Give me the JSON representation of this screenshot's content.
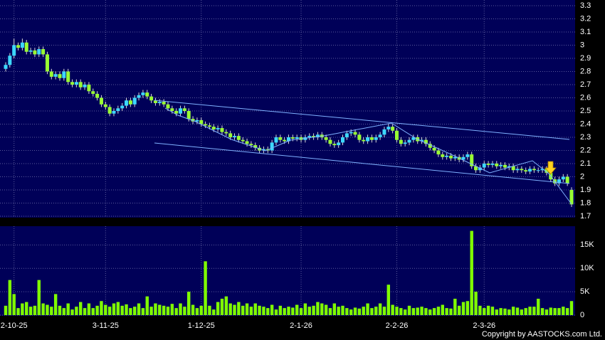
{
  "chart_data": {
    "type": "candlestick",
    "open": [
      2.82,
      2.85,
      2.92,
      3.0,
      2.98,
      3.02,
      2.95,
      2.96,
      2.93,
      2.97,
      2.93,
      2.8,
      2.76,
      2.78,
      2.75,
      2.8,
      2.72,
      2.7,
      2.72,
      2.68,
      2.7,
      2.65,
      2.63,
      2.6,
      2.55,
      2.53,
      2.48,
      2.5,
      2.52,
      2.54,
      2.58,
      2.55,
      2.6,
      2.62,
      2.64,
      2.61,
      2.58,
      2.56,
      2.57,
      2.55,
      2.52,
      2.5,
      2.48,
      2.52,
      2.5,
      2.44,
      2.42,
      2.43,
      2.4,
      2.39,
      2.38,
      2.36,
      2.37,
      2.34,
      2.33,
      2.3,
      2.31,
      2.28,
      2.27,
      2.25,
      2.24,
      2.22,
      2.2,
      2.21,
      2.2,
      2.26,
      2.3,
      2.28,
      2.27,
      2.3,
      2.29,
      2.3,
      2.28,
      2.3,
      2.31,
      2.3,
      2.32,
      2.3,
      2.28,
      2.25,
      2.24,
      2.26,
      2.3,
      2.33,
      2.34,
      2.32,
      2.28,
      2.27,
      2.3,
      2.28,
      2.3,
      2.32,
      2.36,
      2.38,
      2.35,
      2.28,
      2.25,
      2.26,
      2.28,
      2.3,
      2.27,
      2.28,
      2.25,
      2.22,
      2.2,
      2.17,
      2.15,
      2.16,
      2.14,
      2.15,
      2.13,
      2.15,
      2.17,
      2.08,
      2.05,
      2.07,
      2.1,
      2.09,
      2.1,
      2.08,
      2.09,
      2.07,
      2.08,
      2.05,
      2.06,
      2.05,
      2.04,
      2.06,
      2.05,
      2.05,
      2.06,
      2.03,
      1.98,
      1.95,
      1.98,
      2.0,
      1.9
    ],
    "high": [
      2.87,
      2.94,
      3.05,
      3.02,
      3.05,
      3.04,
      2.98,
      2.98,
      2.99,
      2.99,
      2.95,
      2.82,
      2.8,
      2.8,
      2.82,
      2.82,
      2.74,
      2.74,
      2.74,
      2.72,
      2.72,
      2.67,
      2.65,
      2.62,
      2.57,
      2.55,
      2.52,
      2.54,
      2.56,
      2.6,
      2.6,
      2.62,
      2.64,
      2.66,
      2.66,
      2.63,
      2.6,
      2.59,
      2.59,
      2.57,
      2.54,
      2.52,
      2.54,
      2.54,
      2.52,
      2.46,
      2.45,
      2.45,
      2.42,
      2.41,
      2.4,
      2.39,
      2.39,
      2.36,
      2.35,
      2.33,
      2.33,
      2.3,
      2.29,
      2.27,
      2.26,
      2.24,
      2.23,
      2.23,
      2.28,
      2.32,
      2.32,
      2.3,
      2.32,
      2.32,
      2.32,
      2.32,
      2.32,
      2.33,
      2.33,
      2.34,
      2.34,
      2.32,
      2.3,
      2.27,
      2.28,
      2.32,
      2.35,
      2.36,
      2.36,
      2.34,
      2.3,
      2.32,
      2.32,
      2.32,
      2.34,
      2.38,
      2.4,
      2.4,
      2.37,
      2.3,
      2.28,
      2.3,
      2.32,
      2.32,
      2.3,
      2.3,
      2.27,
      2.24,
      2.22,
      2.19,
      2.18,
      2.18,
      2.17,
      2.17,
      2.17,
      2.19,
      2.19,
      2.1,
      2.09,
      2.12,
      2.12,
      2.12,
      2.12,
      2.11,
      2.11,
      2.1,
      2.1,
      2.08,
      2.08,
      2.07,
      2.08,
      2.08,
      2.07,
      2.08,
      2.08,
      2.05,
      2.0,
      2.0,
      2.02,
      2.02,
      1.92
    ],
    "low": [
      2.8,
      2.83,
      2.9,
      2.96,
      2.96,
      2.93,
      2.93,
      2.91,
      2.91,
      2.91,
      2.78,
      2.74,
      2.74,
      2.73,
      2.73,
      2.7,
      2.68,
      2.68,
      2.66,
      2.66,
      2.63,
      2.61,
      2.58,
      2.53,
      2.51,
      2.46,
      2.46,
      2.48,
      2.5,
      2.52,
      2.53,
      2.53,
      2.58,
      2.6,
      2.59,
      2.56,
      2.54,
      2.54,
      2.53,
      2.5,
      2.48,
      2.46,
      2.46,
      2.48,
      2.42,
      2.4,
      2.4,
      2.38,
      2.37,
      2.36,
      2.34,
      2.34,
      2.32,
      2.31,
      2.28,
      2.28,
      2.26,
      2.25,
      2.23,
      2.22,
      2.2,
      2.18,
      2.18,
      2.18,
      2.18,
      2.24,
      2.26,
      2.25,
      2.25,
      2.27,
      2.27,
      2.26,
      2.26,
      2.28,
      2.28,
      2.28,
      2.28,
      2.26,
      2.23,
      2.22,
      2.22,
      2.24,
      2.28,
      2.31,
      2.3,
      2.26,
      2.25,
      2.25,
      2.26,
      2.26,
      2.28,
      2.3,
      2.34,
      2.33,
      2.26,
      2.23,
      2.23,
      2.24,
      2.26,
      2.25,
      2.25,
      2.23,
      2.2,
      2.18,
      2.15,
      2.13,
      2.13,
      2.12,
      2.12,
      2.11,
      2.11,
      2.13,
      2.06,
      2.03,
      2.03,
      2.05,
      2.07,
      2.07,
      2.06,
      2.06,
      2.05,
      2.05,
      2.03,
      2.03,
      2.03,
      2.02,
      2.02,
      2.03,
      2.03,
      2.03,
      2.01,
      1.96,
      1.93,
      1.93,
      1.96,
      1.93,
      1.77
    ],
    "close": [
      2.85,
      2.92,
      3.0,
      2.98,
      3.02,
      2.95,
      2.96,
      2.93,
      2.97,
      2.93,
      2.8,
      2.76,
      2.78,
      2.75,
      2.8,
      2.72,
      2.7,
      2.72,
      2.68,
      2.7,
      2.65,
      2.63,
      2.6,
      2.55,
      2.53,
      2.48,
      2.5,
      2.52,
      2.54,
      2.58,
      2.55,
      2.6,
      2.62,
      2.64,
      2.61,
      2.58,
      2.56,
      2.57,
      2.55,
      2.52,
      2.5,
      2.48,
      2.52,
      2.5,
      2.44,
      2.42,
      2.43,
      2.4,
      2.39,
      2.38,
      2.36,
      2.37,
      2.34,
      2.33,
      2.3,
      2.31,
      2.28,
      2.27,
      2.25,
      2.24,
      2.22,
      2.2,
      2.21,
      2.2,
      2.26,
      2.3,
      2.28,
      2.27,
      2.3,
      2.29,
      2.3,
      2.28,
      2.3,
      2.31,
      2.3,
      2.32,
      2.3,
      2.28,
      2.25,
      2.24,
      2.26,
      2.3,
      2.33,
      2.34,
      2.32,
      2.28,
      2.27,
      2.3,
      2.28,
      2.3,
      2.32,
      2.36,
      2.38,
      2.35,
      2.28,
      2.25,
      2.26,
      2.28,
      2.3,
      2.27,
      2.28,
      2.25,
      2.22,
      2.2,
      2.17,
      2.15,
      2.16,
      2.14,
      2.15,
      2.13,
      2.15,
      2.17,
      2.08,
      2.05,
      2.07,
      2.1,
      2.09,
      2.1,
      2.08,
      2.09,
      2.07,
      2.08,
      2.05,
      2.06,
      2.05,
      2.04,
      2.06,
      2.05,
      2.05,
      2.06,
      2.03,
      1.98,
      1.95,
      1.98,
      2.0,
      1.95,
      1.79
    ],
    "up_color": "#3cd8ff",
    "down_color": "#99ff33",
    "ylim": [
      1.7,
      3.3
    ],
    "yticks": [
      1.7,
      1.8,
      1.9,
      2,
      2.1,
      2.2,
      2.3,
      2.4,
      2.5,
      2.6,
      2.7,
      2.8,
      2.9,
      3,
      3.1,
      3.2,
      3.3
    ],
    "grid": true,
    "xticks": [
      {
        "value": 2,
        "label": "2-10-25"
      },
      {
        "value": 24,
        "label": "3-11-25"
      },
      {
        "value": 47,
        "label": "1-12-25"
      },
      {
        "value": 71,
        "label": "2-1-26"
      },
      {
        "value": 94,
        "label": "2-2-26"
      },
      {
        "value": 115,
        "label": "2-3-26"
      }
    ],
    "volume": {
      "color": "#80ff00",
      "values": [
        2000,
        7500,
        4500,
        1500,
        2500,
        2800,
        1800,
        2000,
        7500,
        2500,
        2200,
        1800,
        4500,
        2000,
        1500,
        2500,
        1200,
        1800,
        2800,
        1500,
        2500,
        1500,
        2000,
        3000,
        2200,
        1800,
        2500,
        2800,
        2000,
        2300,
        1500,
        1800,
        2500,
        1500,
        4000,
        1800,
        2500,
        2200,
        2000,
        1800,
        2400,
        1500,
        2500,
        1800,
        5000,
        2200,
        1500,
        2000,
        11500,
        2000,
        1200,
        2800,
        3500,
        4000,
        2500,
        2200,
        2800,
        2000,
        2500,
        1800,
        2500,
        2000,
        1800,
        1500,
        2200,
        1200,
        2000,
        1500,
        1800,
        1600,
        2200,
        1500,
        2500,
        1800,
        2000,
        2800,
        2500,
        2200,
        1500,
        2500,
        1800,
        2000,
        1500,
        1200,
        1600,
        1400,
        1800,
        2500,
        1500,
        1800,
        2500,
        1800,
        6500,
        2200,
        1800,
        1500,
        1200,
        2000,
        1500,
        1600,
        1800,
        1500,
        1200,
        1500,
        1800,
        2200,
        1500,
        1400,
        3500,
        2000,
        2800,
        3000,
        18000,
        5000,
        2000,
        1500,
        2000,
        1800,
        1200,
        1500,
        1400,
        1200,
        1800,
        1600,
        1200,
        1500,
        1800,
        1800,
        3500,
        1500,
        1200,
        1600,
        1500,
        1500,
        1800,
        1500,
        3000
      ],
      "ylim": [
        0,
        19000
      ],
      "yticks": [
        0,
        {
          "value": 5000,
          "label": "5K"
        },
        {
          "value": 10000,
          "label": "10K"
        },
        {
          "value": 15000,
          "label": "15K"
        }
      ]
    },
    "copyright": "Copyright by AASTOCKS.com Ltd."
  }
}
